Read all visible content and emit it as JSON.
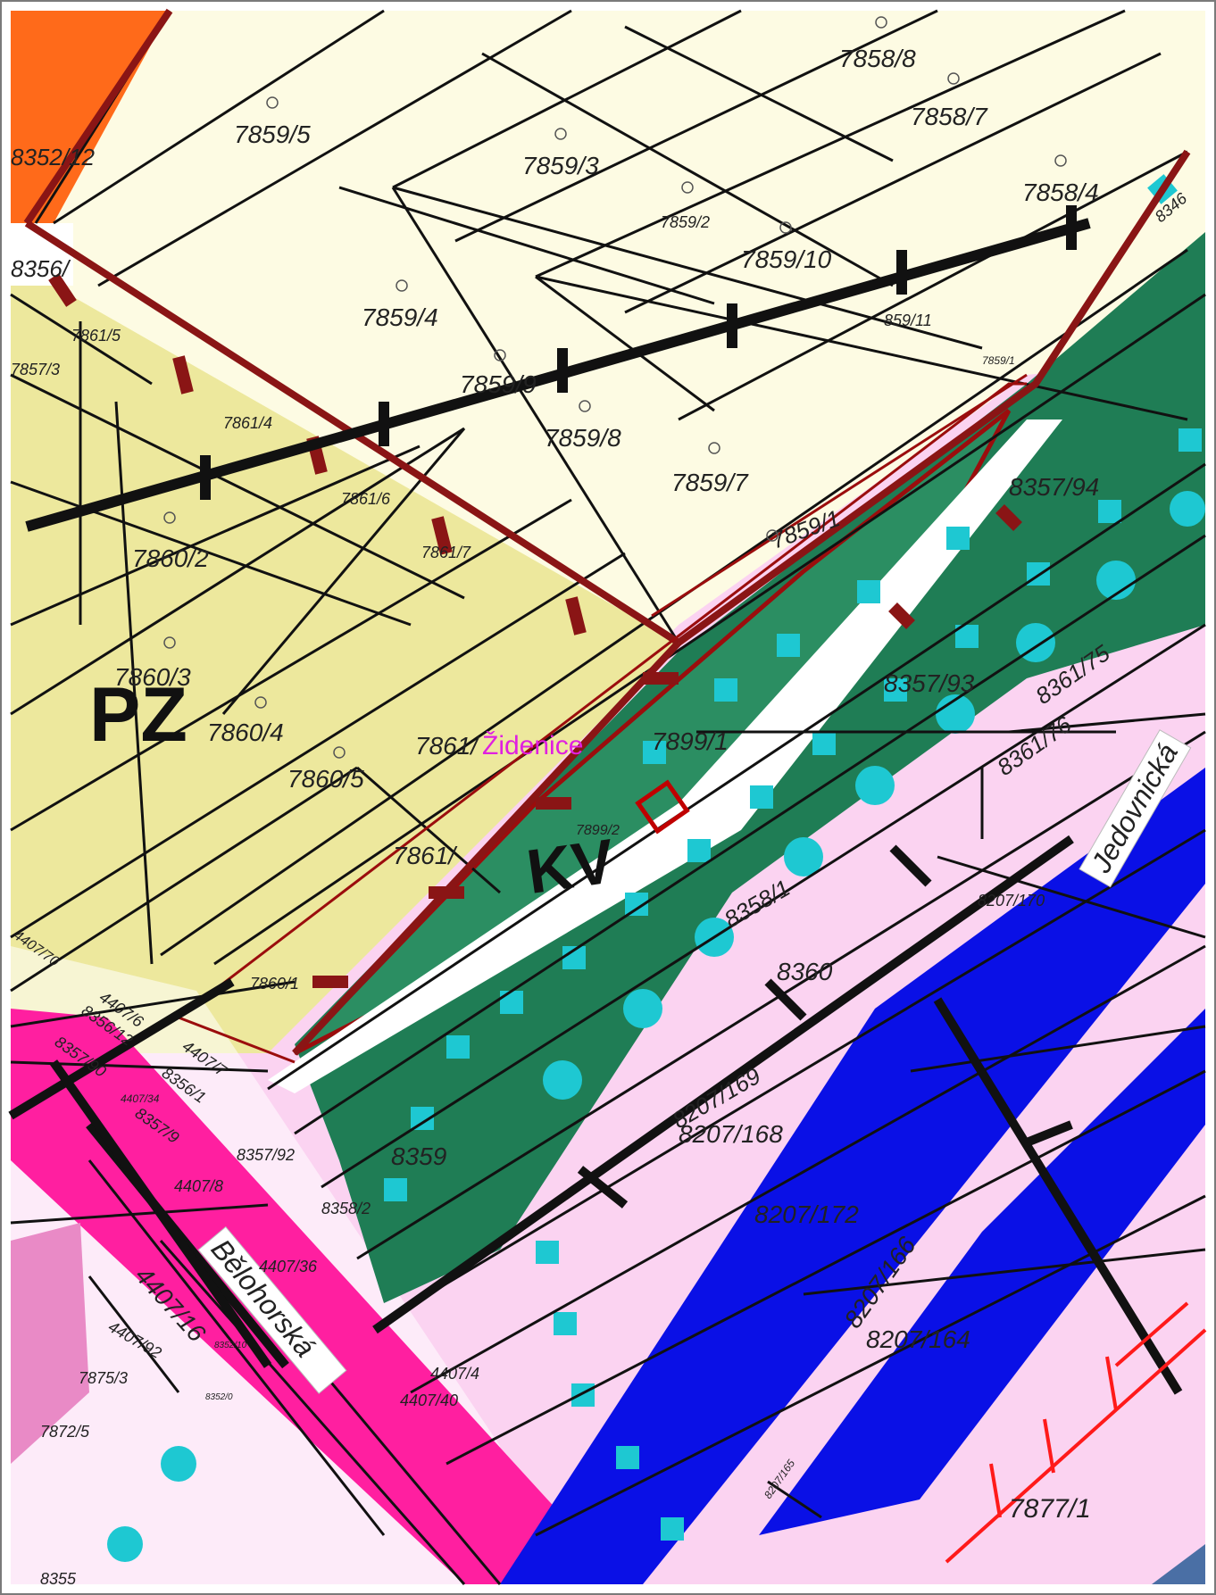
{
  "map": {
    "zones": [
      {
        "code": "PZ",
        "color": "#ede89d"
      },
      {
        "code": "KV",
        "color": "#1f7d55"
      }
    ],
    "place_label": "Židenice",
    "street_labels": [
      "Jedovnická",
      "Bělohorská"
    ],
    "parcels": {
      "p7858_8": "7858/8",
      "p7858_7": "7858/7",
      "p7858_4": "7858/4",
      "p7859_5": "7859/5",
      "p7859_3": "7859/3",
      "p7859_2": "7859/2",
      "p7859_10": "7859/10",
      "p7859_4": "7859/4",
      "p7859_9": "7859/9",
      "p7859_8": "7859/8",
      "p7859_7": "7859/7",
      "p7859_1": "7859/1",
      "p7859_11": "859/11",
      "p7859_11b": "7859/1",
      "p7861_5": "7861/5",
      "p7861_4": "7861/4",
      "p7861_6": "7861/6",
      "p7861_7": "7861/7",
      "p7860_2": "7860/2",
      "p7860_3": "7860/3",
      "p7860_4": "7860/4",
      "p7860_5": "7860/5",
      "p7861_x": "7861/",
      "p7861_y": "7861/",
      "p7860_1": "7860/1",
      "p7899_1": "7899/1",
      "p7899_2": "7899/2",
      "p8357_94": "8357/94",
      "p8357_93": "8357/93",
      "p8361_75": "8361/75",
      "p8361_76": "8361/76",
      "p8358_1": "8358/1",
      "p8360": "8360",
      "p8207_170": "8207/170",
      "p8207_169": "8207/169",
      "p8207_168": "8207/168",
      "p8207_172": "8207/172",
      "p8207_166": "8207/166",
      "p8207_164": "8207/164",
      "p8207_165": "8207/165",
      "p8359": "8359",
      "p8358_2": "8358/2",
      "p8357_92": "8357/92",
      "p8357_91": "8357/9",
      "p8357_90": "8357/90",
      "p8356_12": "8356/12",
      "p8356_1": "8356/1",
      "p4407_7": "4407/7",
      "p4407_6": "4407/6",
      "p4407_70": "4407/70",
      "p4407_8": "4407/8",
      "p4407_16": "4407/16",
      "p4407_36": "4407/36",
      "p4407_92": "4407/92",
      "p4407_40": "4407/40",
      "p4407_4x": "4407/4",
      "p4407_34": "4407/34",
      "p7875_3": "7875/3",
      "p7872_5": "7872/5",
      "p7877_1": "7877/1",
      "p8352_12": "8352/12",
      "p8356_top": "8356/",
      "p8357_3": "7857/3",
      "p8355": "8355",
      "p8352_10": "8352/10",
      "p8352_0": "8352/0",
      "p7858_6": "8346"
    },
    "colors": {
      "built": "#fdfbe3",
      "yellow": "#ede89d",
      "green": "#1f7d55",
      "cyan": "#1ec8d2",
      "pink": "#fbd3f1",
      "magenta": "#ff1fa0",
      "blue": "#0a10e6",
      "orange": "#ff6a1a",
      "redline": "#9b0d0d",
      "darkred": "#8a1515"
    }
  }
}
